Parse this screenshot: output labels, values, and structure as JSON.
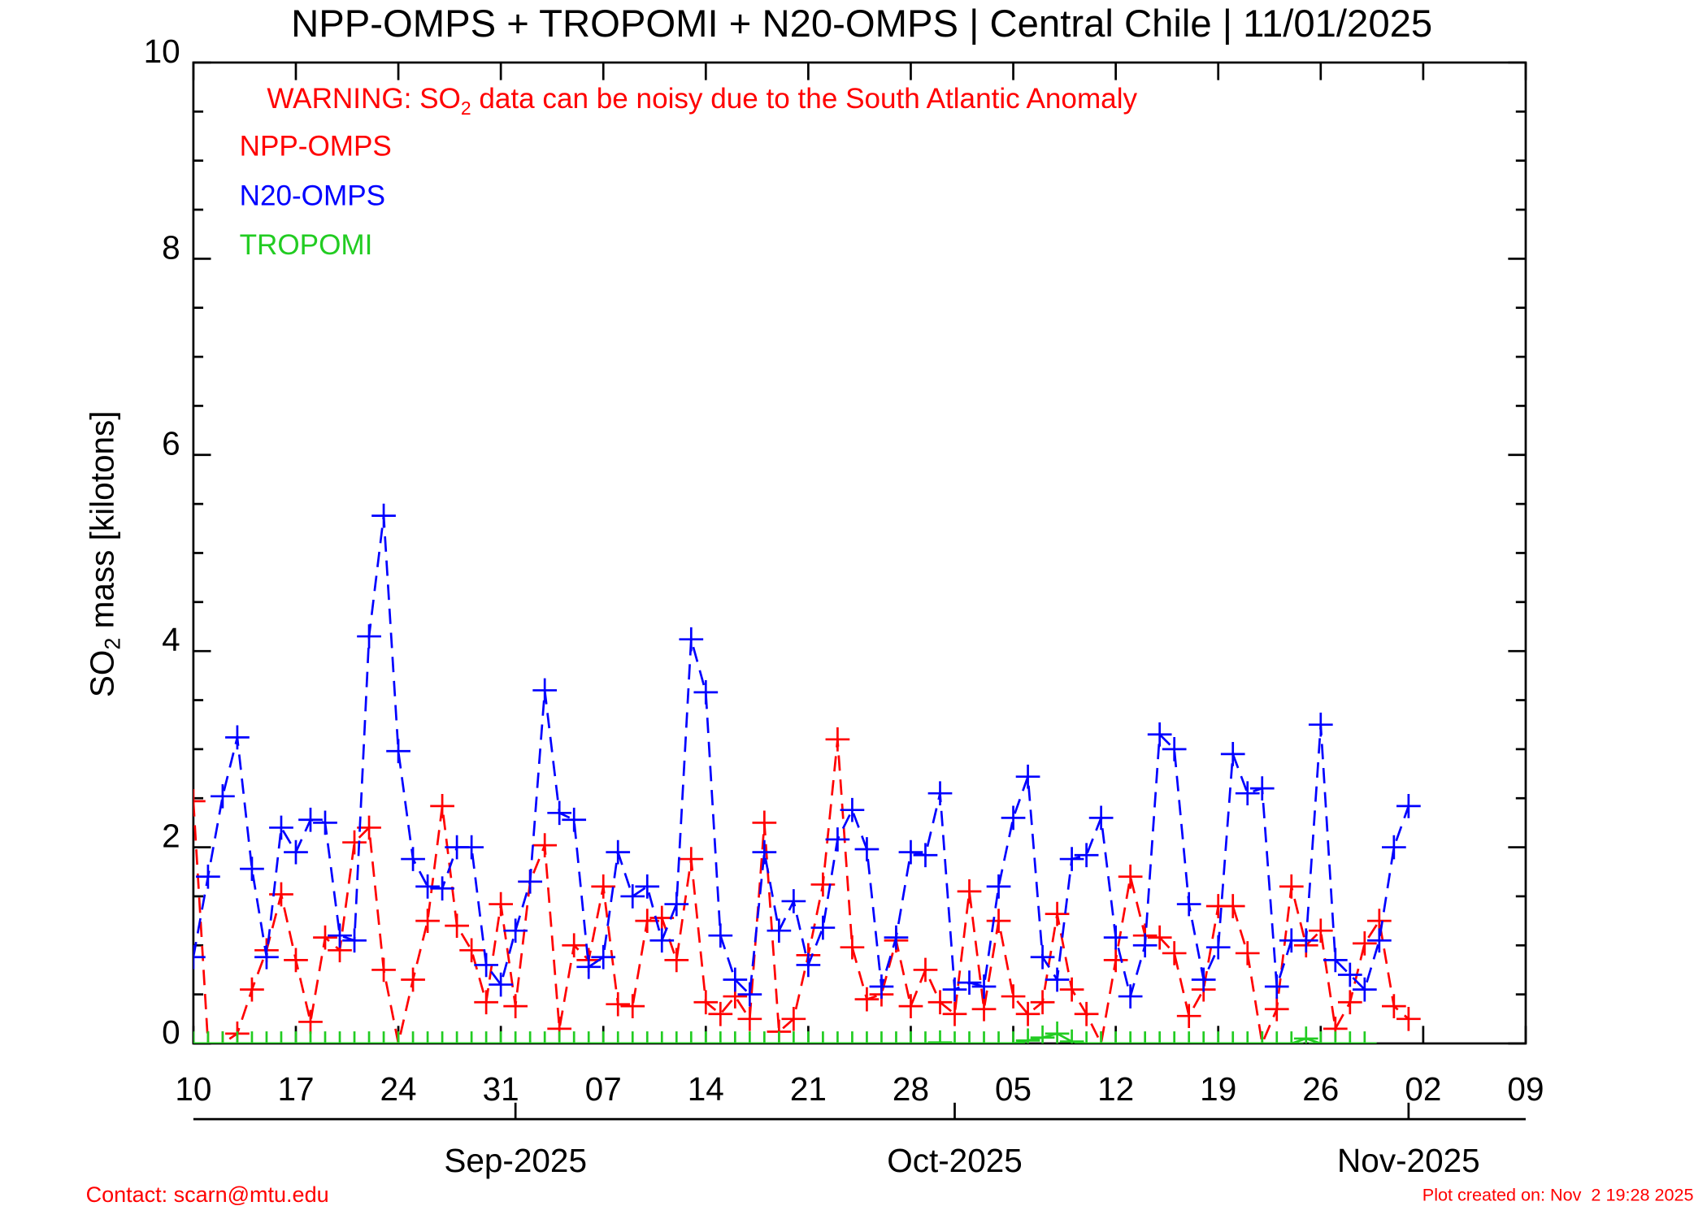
{
  "chart_data": {
    "type": "line",
    "title": "NPP-OMPS + TROPOMI + N20-OMPS | Central Chile | 11/01/2025",
    "annotation": {
      "before": "WARNING: SO",
      "sub": "2",
      "after": " data can be noisy due to the South Atlantic Anomaly"
    },
    "y_label": {
      "before": "SO",
      "sub": "2",
      "after": " mass [kilotons]"
    },
    "contact": "Contact: scarn@mtu.edu",
    "created": "Plot created on: Nov  2 19:28 2025",
    "x": [
      "2025-08-10",
      "2025-08-11",
      "2025-08-12",
      "2025-08-13",
      "2025-08-14",
      "2025-08-15",
      "2025-08-16",
      "2025-08-17",
      "2025-08-18",
      "2025-08-19",
      "2025-08-20",
      "2025-08-21",
      "2025-08-22",
      "2025-08-23",
      "2025-08-24",
      "2025-08-25",
      "2025-08-26",
      "2025-08-27",
      "2025-08-28",
      "2025-08-29",
      "2025-08-30",
      "2025-08-31",
      "2025-09-01",
      "2025-09-02",
      "2025-09-03",
      "2025-09-04",
      "2025-09-05",
      "2025-09-06",
      "2025-09-07",
      "2025-09-08",
      "2025-09-09",
      "2025-09-10",
      "2025-09-11",
      "2025-09-12",
      "2025-09-13",
      "2025-09-14",
      "2025-09-15",
      "2025-09-16",
      "2025-09-17",
      "2025-09-18",
      "2025-09-19",
      "2025-09-20",
      "2025-09-21",
      "2025-09-22",
      "2025-09-23",
      "2025-09-24",
      "2025-09-25",
      "2025-09-26",
      "2025-09-27",
      "2025-09-28",
      "2025-09-29",
      "2025-09-30",
      "2025-10-01",
      "2025-10-02",
      "2025-10-03",
      "2025-10-04",
      "2025-10-05",
      "2025-10-06",
      "2025-10-07",
      "2025-10-08",
      "2025-10-09",
      "2025-10-10",
      "2025-10-11",
      "2025-10-12",
      "2025-10-13",
      "2025-10-14",
      "2025-10-15",
      "2025-10-16",
      "2025-10-17",
      "2025-10-18",
      "2025-10-19",
      "2025-10-20",
      "2025-10-21",
      "2025-10-22",
      "2025-10-23",
      "2025-10-24",
      "2025-10-25",
      "2025-10-26",
      "2025-10-27",
      "2025-10-28",
      "2025-10-29",
      "2025-10-30",
      "2025-10-31",
      "2025-11-01"
    ],
    "series": [
      {
        "name": "NPP-OMPS",
        "color": "#ff0000",
        "values": [
          2.47,
          0.0,
          0.0,
          0.1,
          0.55,
          0.95,
          1.52,
          0.85,
          0.22,
          1.08,
          0.95,
          2.05,
          2.2,
          0.75,
          0.0,
          0.65,
          1.25,
          2.42,
          1.2,
          0.95,
          0.42,
          1.42,
          0.38,
          1.65,
          2.02,
          0.15,
          1.0,
          0.85,
          1.6,
          0.4,
          0.38,
          1.25,
          1.28,
          0.85,
          1.88,
          0.42,
          0.3,
          0.48,
          0.25,
          2.25,
          0.12,
          0.25,
          0.9,
          1.62,
          3.1,
          0.98,
          0.45,
          0.5,
          1.05,
          0.38,
          0.75,
          0.42,
          0.3,
          1.55,
          0.35,
          1.25,
          0.48,
          0.3,
          0.42,
          1.32,
          0.55,
          0.3,
          0.0,
          0.85,
          1.7,
          1.1,
          1.08,
          0.92,
          0.28,
          0.55,
          1.4,
          1.4,
          0.92,
          0.0,
          0.35,
          1.6,
          1.0,
          1.15,
          0.15,
          0.42,
          1.02,
          1.25,
          0.38,
          0.25
        ]
      },
      {
        "name": "N20-OMPS",
        "color": "#0000ff",
        "values": [
          0.88,
          1.7,
          2.52,
          3.12,
          1.78,
          0.88,
          2.2,
          1.95,
          2.28,
          2.25,
          1.1,
          1.05,
          4.15,
          5.38,
          2.98,
          1.88,
          1.6,
          1.58,
          2.0,
          2.0,
          0.8,
          0.6,
          1.15,
          1.65,
          3.6,
          2.35,
          2.28,
          0.78,
          0.88,
          1.95,
          1.5,
          1.6,
          1.05,
          1.42,
          4.12,
          3.58,
          1.1,
          0.65,
          0.5,
          1.95,
          1.15,
          1.45,
          0.8,
          1.18,
          2.08,
          2.38,
          1.98,
          0.58,
          1.08,
          1.95,
          1.92,
          2.55,
          0.55,
          0.62,
          0.58,
          1.6,
          2.3,
          2.72,
          0.88,
          0.65,
          1.88,
          1.92,
          2.3,
          1.08,
          0.48,
          1.0,
          3.15,
          3.0,
          1.42,
          0.65,
          0.98,
          2.95,
          2.55,
          2.6,
          0.58,
          1.05,
          1.05,
          3.25,
          0.85,
          0.7,
          0.55,
          1.05,
          2.0,
          2.42
        ]
      },
      {
        "name": "TROPOMI",
        "color": "#22cc22",
        "values": [
          0,
          0,
          0,
          0,
          0,
          0,
          0,
          0,
          0,
          0,
          0,
          0,
          0,
          0,
          0,
          0,
          0,
          0,
          0,
          0,
          0,
          0,
          0,
          0,
          0,
          0,
          0,
          0,
          0,
          0,
          0,
          0,
          0,
          0,
          0,
          0,
          0,
          0,
          0,
          0,
          0,
          0,
          0,
          0,
          0,
          0,
          0,
          0,
          0,
          0,
          0,
          0.01,
          0,
          0,
          0,
          0,
          0,
          0.03,
          0.06,
          0.1,
          0.02,
          0,
          0,
          0,
          0,
          0,
          0,
          0,
          0,
          0,
          0,
          0,
          0,
          0,
          0,
          0,
          0.05,
          0,
          0,
          0,
          0,
          null,
          null,
          null
        ]
      }
    ],
    "xlim": [
      "2025-08-10",
      "2025-11-09"
    ],
    "xticks": [
      {
        "value": "2025-08-10",
        "label": "10"
      },
      {
        "value": "2025-08-17",
        "label": "17"
      },
      {
        "value": "2025-08-24",
        "label": "24"
      },
      {
        "value": "2025-08-31",
        "label": "31"
      },
      {
        "value": "2025-09-07",
        "label": "07"
      },
      {
        "value": "2025-09-14",
        "label": "14"
      },
      {
        "value": "2025-09-21",
        "label": "21"
      },
      {
        "value": "2025-09-28",
        "label": "28"
      },
      {
        "value": "2025-10-05",
        "label": "05"
      },
      {
        "value": "2025-10-12",
        "label": "12"
      },
      {
        "value": "2025-10-19",
        "label": "19"
      },
      {
        "value": "2025-10-26",
        "label": "26"
      },
      {
        "value": "2025-11-02",
        "label": "02"
      },
      {
        "value": "2025-11-09",
        "label": "09"
      }
    ],
    "month_ticks": [
      {
        "value": "2025-09-01",
        "label": "Sep-2025"
      },
      {
        "value": "2025-10-01",
        "label": "Oct-2025"
      },
      {
        "value": "2025-11-01",
        "label": "Nov-2025"
      }
    ],
    "ylim": [
      0,
      10
    ],
    "yticks": [
      0,
      2,
      4,
      6,
      8,
      10
    ],
    "yminorticks": [
      0.5,
      1,
      1.5,
      2.5,
      3,
      3.5,
      4.5,
      5,
      5.5,
      6.5,
      7,
      7.5,
      8.5,
      9,
      9.5
    ]
  }
}
